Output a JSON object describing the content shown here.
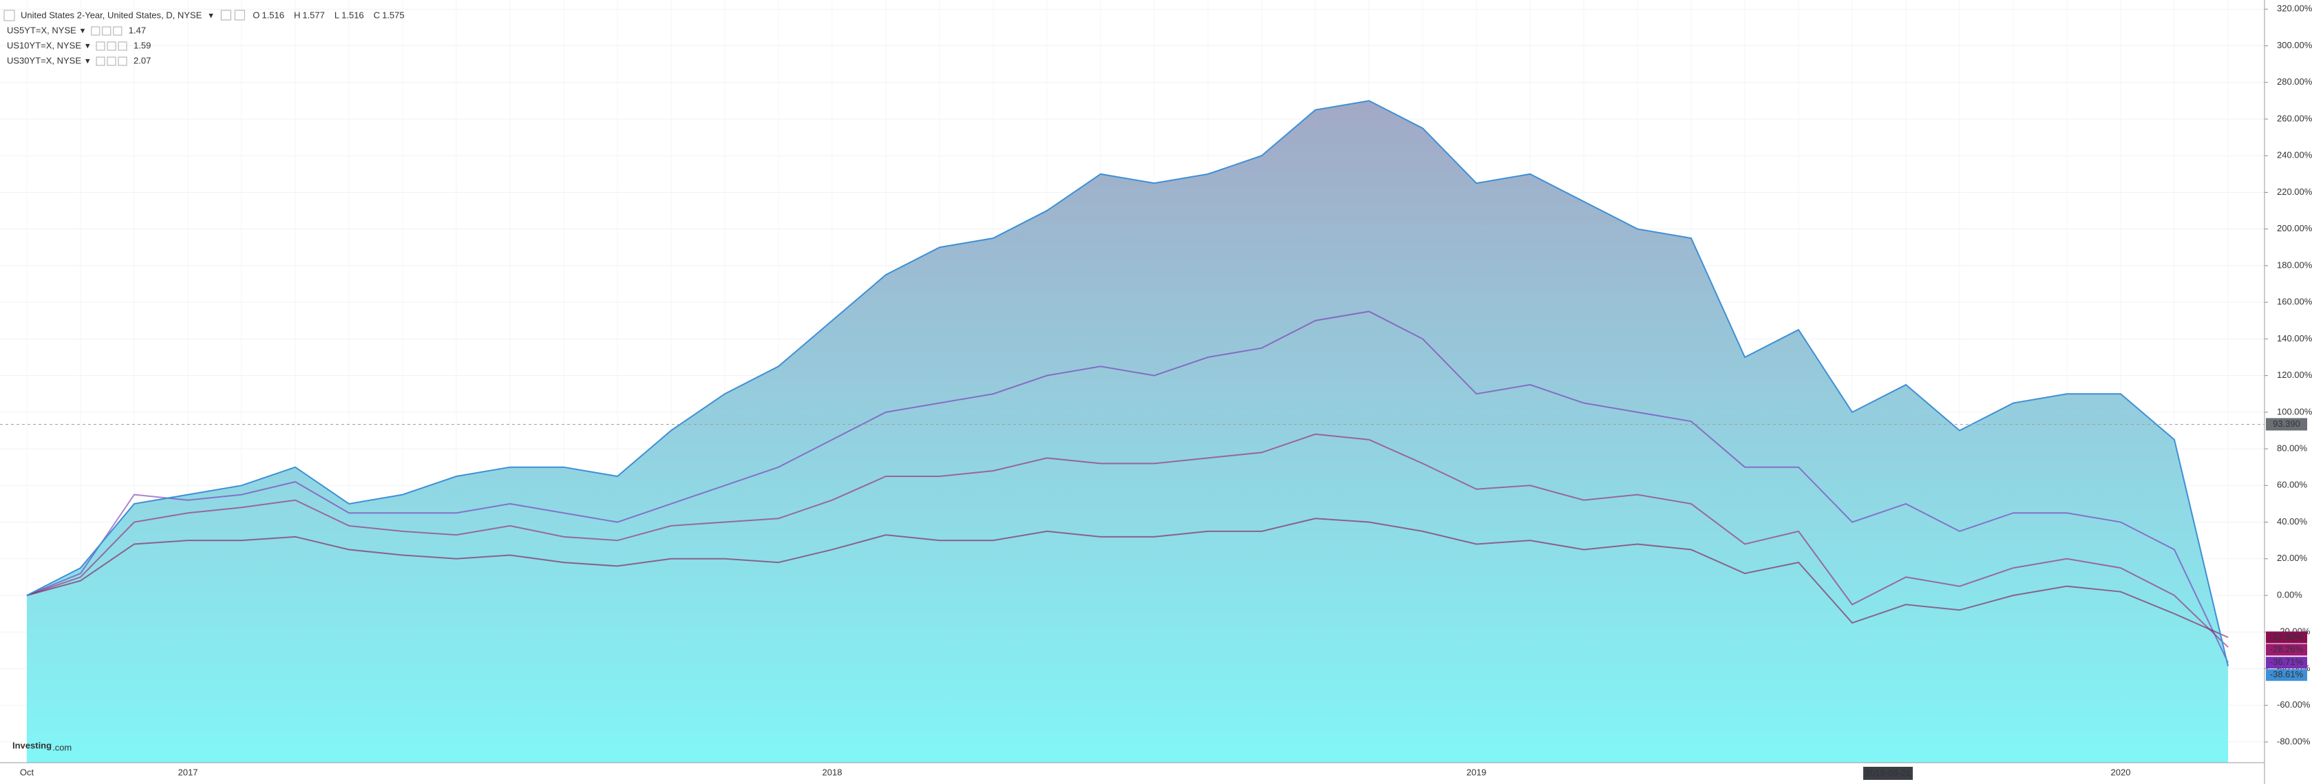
{
  "chart_data": {
    "type": "area",
    "title": "United States 2-Year, United States, D, NYSE",
    "ohlc": [
      {
        "label": "O",
        "value": 1.516
      },
      {
        "label": "H",
        "value": 1.577
      },
      {
        "label": "L",
        "value": 1.516
      },
      {
        "label": "C",
        "value": 1.575
      }
    ],
    "logo": [
      "Investing",
      ".com"
    ],
    "categories": [
      "Oct",
      null,
      null,
      "2017",
      null,
      null,
      null,
      null,
      null,
      null,
      null,
      null,
      null,
      null,
      null,
      "2018",
      null,
      null,
      null,
      null,
      null,
      null,
      null,
      null,
      null,
      null,
      null,
      "2019",
      null,
      null,
      null,
      null,
      null,
      null,
      null,
      null,
      null,
      null,
      null,
      "2020",
      null,
      null
    ],
    "series": [
      {
        "name": "United States 2-Year, United States, D, NYSE",
        "color": "#3d8fd6",
        "values": [
          0,
          15,
          50,
          55,
          60,
          70,
          50,
          55,
          65,
          70,
          70,
          65,
          90,
          110,
          125,
          150,
          175,
          190,
          195,
          210,
          230,
          225,
          230,
          240,
          265,
          270,
          255,
          225,
          230,
          215,
          200,
          195,
          130,
          145,
          100,
          115,
          90,
          105,
          110,
          110,
          85,
          -38.61
        ],
        "value_labels": [
          null,
          null,
          null,
          null,
          null,
          null,
          null,
          null,
          null,
          null,
          null,
          null,
          null,
          null,
          null,
          null,
          null,
          null,
          null,
          null,
          null,
          null,
          null,
          null,
          null,
          null,
          null,
          null,
          null,
          null,
          null,
          null,
          null,
          null,
          null,
          null,
          null,
          null,
          null,
          null,
          null,
          "-38.61%"
        ]
      },
      {
        "name": "US5YT=X, NYSE",
        "price": 1.47,
        "color": "#7a2fb5",
        "values": [
          0,
          12,
          55,
          52,
          55,
          62,
          45,
          45,
          45,
          50,
          45,
          40,
          50,
          60,
          70,
          85,
          100,
          105,
          110,
          120,
          125,
          120,
          130,
          135,
          150,
          155,
          140,
          110,
          115,
          105,
          100,
          95,
          70,
          70,
          40,
          50,
          35,
          45,
          45,
          40,
          25,
          -36.71
        ],
        "value_labels": [
          null,
          null,
          null,
          null,
          null,
          null,
          null,
          null,
          null,
          null,
          null,
          null,
          null,
          null,
          null,
          null,
          null,
          null,
          null,
          null,
          null,
          null,
          null,
          null,
          null,
          null,
          null,
          null,
          null,
          null,
          null,
          null,
          null,
          null,
          null,
          null,
          null,
          null,
          null,
          null,
          null,
          "-36.71%"
        ]
      },
      {
        "name": "US10YT=X, NYSE",
        "price": 1.59,
        "color": "#9c1a70",
        "values": [
          0,
          10,
          40,
          45,
          48,
          52,
          38,
          35,
          33,
          38,
          32,
          30,
          38,
          40,
          42,
          52,
          65,
          65,
          68,
          75,
          72,
          72,
          75,
          78,
          88,
          85,
          72,
          58,
          60,
          52,
          55,
          50,
          28,
          35,
          -5,
          10,
          5,
          15,
          20,
          15,
          0,
          -28.26
        ],
        "value_labels": [
          null,
          null,
          null,
          null,
          null,
          null,
          null,
          null,
          null,
          null,
          null,
          null,
          null,
          null,
          null,
          null,
          null,
          null,
          null,
          null,
          null,
          null,
          null,
          null,
          null,
          null,
          null,
          null,
          null,
          null,
          null,
          null,
          null,
          null,
          null,
          null,
          null,
          null,
          null,
          null,
          null,
          "-28.26%"
        ]
      },
      {
        "name": "US30YT=X, NYSE",
        "price": 2.07,
        "color": "#880e4f",
        "values": [
          0,
          8,
          28,
          30,
          30,
          32,
          25,
          22,
          20,
          22,
          18,
          16,
          20,
          20,
          18,
          25,
          33,
          30,
          30,
          35,
          32,
          32,
          35,
          35,
          42,
          40,
          35,
          28,
          30,
          25,
          28,
          25,
          12,
          18,
          -15,
          -5,
          -8,
          0,
          5,
          2,
          -10,
          -22.9
        ],
        "value_labels": [
          null,
          null,
          null,
          null,
          null,
          null,
          null,
          null,
          null,
          null,
          null,
          null,
          null,
          null,
          null,
          null,
          null,
          null,
          null,
          null,
          null,
          null,
          null,
          null,
          null,
          null,
          null,
          null,
          null,
          null,
          null,
          null,
          null,
          null,
          null,
          null,
          null,
          null,
          null,
          null,
          null,
          "-22.90%"
        ]
      }
    ],
    "crosshair": {
      "x": "2019-08-21",
      "y": {
        "value": 93.39,
        "label": "93.390"
      }
    },
    "ylim": [
      -91.3,
      325
    ],
    "yticks": [
      {
        "value": -80,
        "label": "-80.00%"
      },
      {
        "value": -60,
        "label": "-60.00%"
      },
      {
        "value": -40,
        "label": "-40.00%"
      },
      {
        "value": -20,
        "label": "-20.00%"
      },
      {
        "value": 0,
        "label": "0.00%"
      },
      {
        "value": 20,
        "label": "20.00%"
      },
      {
        "value": 40,
        "label": "40.00%"
      },
      {
        "value": 60,
        "label": "60.00%"
      },
      {
        "value": 80,
        "label": "80.00%"
      },
      {
        "value": 100,
        "label": "100.00%"
      },
      {
        "value": 120,
        "label": "120.00%"
      },
      {
        "value": 140,
        "label": "140.00%"
      },
      {
        "value": 160,
        "label": "160.00%"
      },
      {
        "value": 180,
        "label": "180.00%"
      },
      {
        "value": 200,
        "label": "200.00%"
      },
      {
        "value": 220,
        "label": "220.00%"
      },
      {
        "value": 240,
        "label": "240.00%"
      },
      {
        "value": 260,
        "label": "260.00%"
      },
      {
        "value": 280,
        "label": "280.00%"
      },
      {
        "value": 300,
        "label": "300.00%"
      },
      {
        "value": 320,
        "label": "320.00%"
      }
    ],
    "grid": true
  }
}
